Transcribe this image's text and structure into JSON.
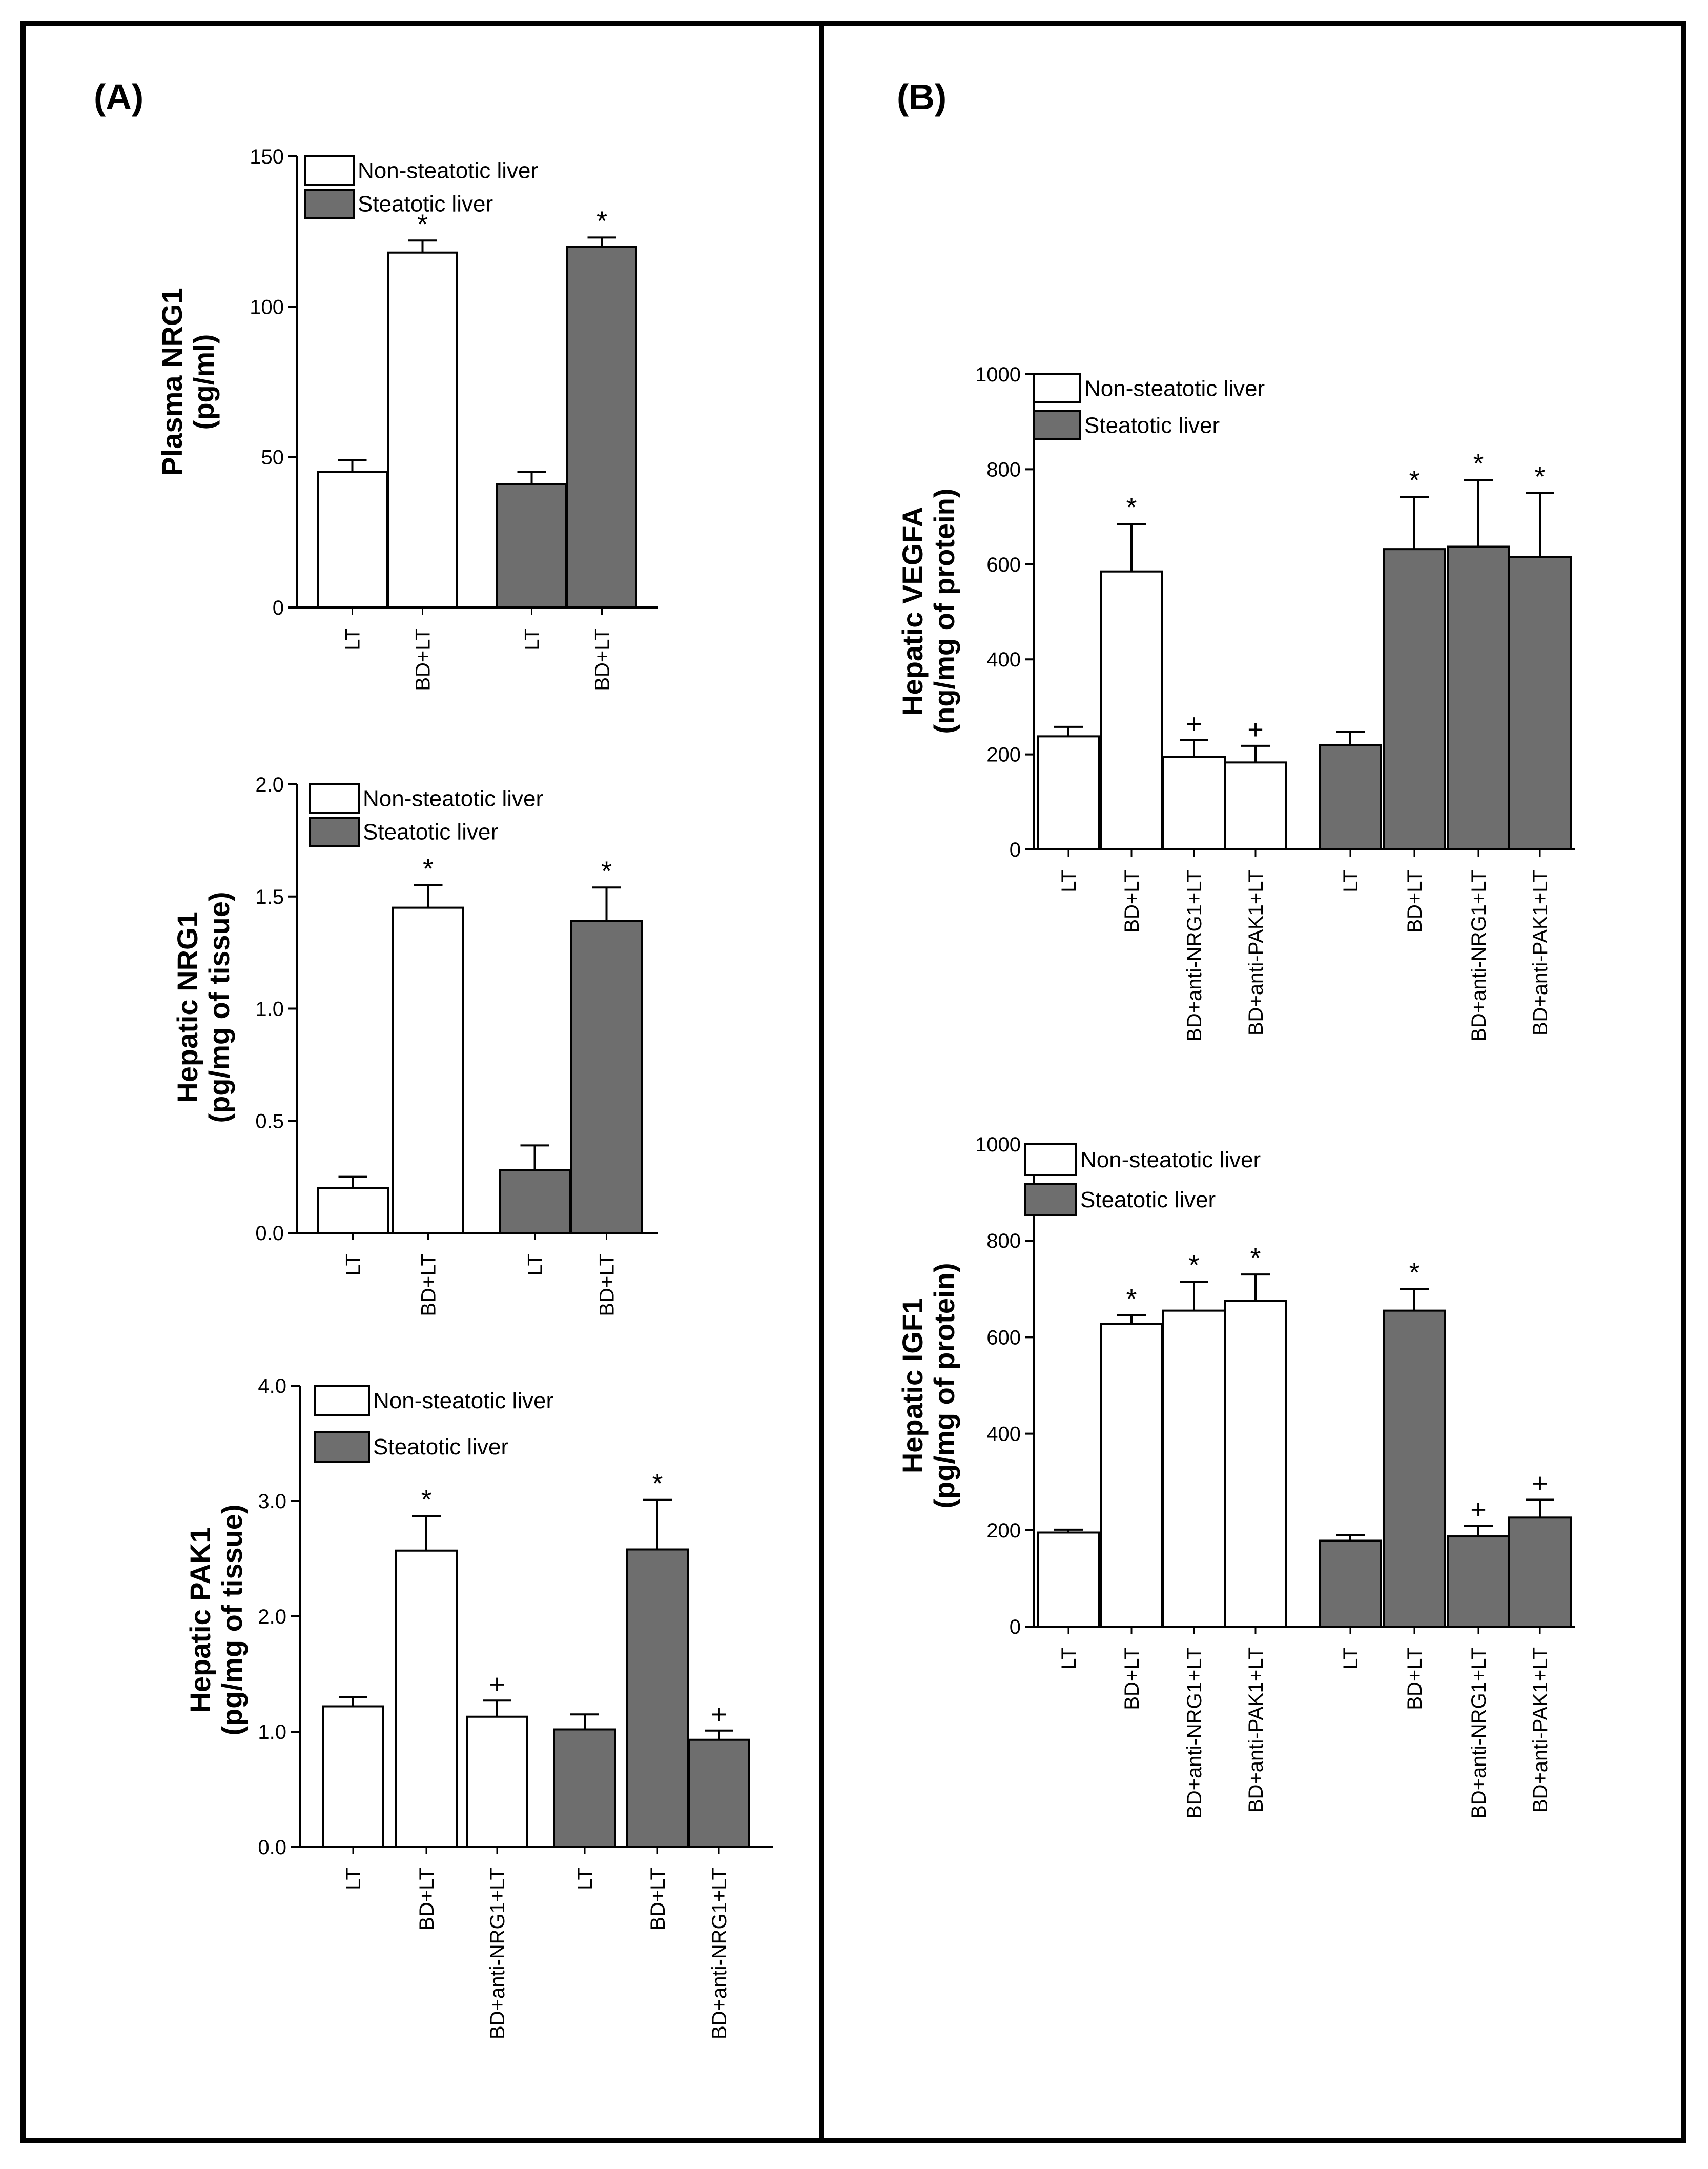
{
  "panel_labels": [
    "(A)",
    "(B)"
  ],
  "legend": {
    "non_steatotic": "Non-steatotic liver",
    "steatotic": "Steatotic liver"
  },
  "colors": {
    "non_steatotic": "#ffffff",
    "steatotic": "#6e6e6e",
    "frame": "#000000"
  },
  "chart_data": [
    {
      "id": "plasma-nrg1",
      "panel": "(A)",
      "type": "bar",
      "ylabel": [
        "Plasma NRG1",
        "(pg/ml)"
      ],
      "ylim": [
        0,
        150
      ],
      "ticks": [
        0,
        50,
        100,
        150
      ],
      "tick_labels": [
        "0",
        "50",
        "100",
        "150"
      ],
      "categories": [
        "LT",
        "BD+LT",
        "LT",
        "BD+LT"
      ],
      "groups": [
        "non_steatotic",
        "non_steatotic",
        "steatotic",
        "steatotic"
      ],
      "values": [
        45,
        118,
        41,
        120
      ],
      "errors": [
        4,
        4,
        4,
        3
      ],
      "marks": [
        "",
        "*",
        "",
        "*"
      ]
    },
    {
      "id": "hepatic-nrg1",
      "panel": "(A)",
      "type": "bar",
      "ylabel": [
        "Hepatic NRG1",
        "(pg/mg of tissue)"
      ],
      "ylim": [
        0,
        2.0
      ],
      "ticks": [
        0,
        0.5,
        1.0,
        1.5,
        2.0
      ],
      "tick_labels": [
        "0.0",
        "0.5",
        "1.0",
        "1.5",
        "2.0"
      ],
      "categories": [
        "LT",
        "BD+LT",
        "LT",
        "BD+LT"
      ],
      "groups": [
        "non_steatotic",
        "non_steatotic",
        "steatotic",
        "steatotic"
      ],
      "values": [
        0.2,
        1.45,
        0.28,
        1.39
      ],
      "errors": [
        0.05,
        0.1,
        0.11,
        0.15
      ],
      "marks": [
        "",
        "*",
        "",
        "*"
      ]
    },
    {
      "id": "hepatic-pak1",
      "panel": "(A)",
      "type": "bar",
      "ylabel": [
        "Hepatic PAK1",
        "(pg/mg of tissue)"
      ],
      "ylim": [
        0,
        4.0
      ],
      "ticks": [
        0,
        1,
        2,
        3,
        4
      ],
      "tick_labels": [
        "0.0",
        "1.0",
        "2.0",
        "3.0",
        "4.0"
      ],
      "categories": [
        "LT",
        "BD+LT",
        "BD+anti-NRG1+LT",
        "LT",
        "BD+LT",
        "BD+anti-NRG1+LT"
      ],
      "groups": [
        "non_steatotic",
        "non_steatotic",
        "non_steatotic",
        "steatotic",
        "steatotic",
        "steatotic"
      ],
      "values": [
        1.22,
        2.57,
        1.13,
        1.02,
        2.58,
        0.93
      ],
      "errors": [
        0.08,
        0.3,
        0.14,
        0.13,
        0.43,
        0.08
      ],
      "marks": [
        "",
        "*",
        "+",
        "",
        "*",
        "+"
      ]
    },
    {
      "id": "hepatic-vegfa",
      "panel": "(B)",
      "type": "bar",
      "ylabel": [
        "Hepatic VEGFA",
        "(ng/mg of protein)"
      ],
      "ylim": [
        0,
        1000
      ],
      "ticks": [
        0,
        200,
        400,
        600,
        800,
        1000
      ],
      "tick_labels": [
        "0",
        "200",
        "400",
        "600",
        "800",
        "1000"
      ],
      "categories": [
        "LT",
        "BD+LT",
        "BD+anti-NRG1+LT",
        "BD+anti-PAK1+LT",
        "LT",
        "BD+LT",
        "BD+anti-NRG1+LT",
        "BD+anti-PAK1+LT"
      ],
      "groups": [
        "non_steatotic",
        "non_steatotic",
        "non_steatotic",
        "non_steatotic",
        "steatotic",
        "steatotic",
        "steatotic",
        "steatotic"
      ],
      "values": [
        238,
        585,
        195,
        183,
        220,
        632,
        637,
        615
      ],
      "errors": [
        20,
        100,
        35,
        35,
        28,
        110,
        140,
        135
      ],
      "marks": [
        "",
        "*",
        "+",
        "+",
        "",
        "*",
        "*",
        "*"
      ]
    },
    {
      "id": "hepatic-igf1",
      "panel": "(B)",
      "type": "bar",
      "ylabel": [
        "Hepatic IGF1",
        "(pg/mg of protein)"
      ],
      "ylim": [
        0,
        1000
      ],
      "ticks": [
        0,
        200,
        400,
        600,
        800,
        1000
      ],
      "tick_labels": [
        "0",
        "200",
        "400",
        "600",
        "800",
        "1000"
      ],
      "categories": [
        "LT",
        "BD+LT",
        "BD+anti-NRG1+LT",
        "BD+anti-PAK1+LT",
        "LT",
        "BD+LT",
        "BD+anti-NRG1+LT",
        "BD+anti-PAK1+LT"
      ],
      "groups": [
        "non_steatotic",
        "non_steatotic",
        "non_steatotic",
        "non_steatotic",
        "steatotic",
        "steatotic",
        "steatotic",
        "steatotic"
      ],
      "values": [
        195,
        628,
        655,
        675,
        178,
        655,
        187,
        226
      ],
      "errors": [
        6,
        17,
        60,
        55,
        12,
        45,
        22,
        37
      ],
      "marks": [
        "",
        "*",
        "*",
        "*",
        "",
        "*",
        "+",
        "+"
      ]
    }
  ]
}
